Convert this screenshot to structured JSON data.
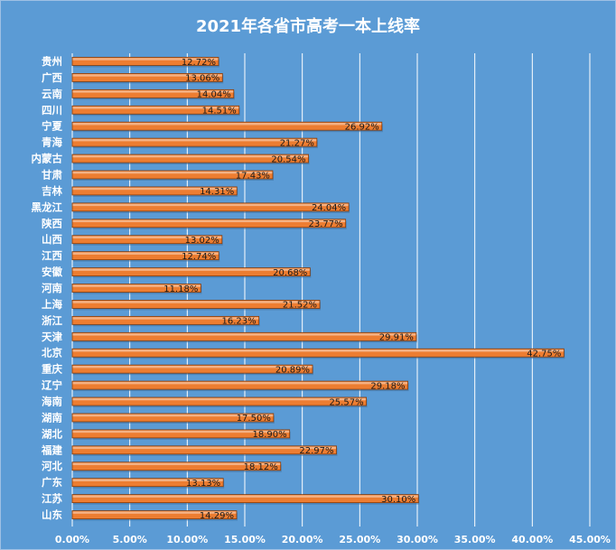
{
  "chart_data": {
    "type": "bar",
    "orientation": "horizontal",
    "title": "2021年各省市高考一本上线率",
    "categories": [
      "贵州",
      "广西",
      "云南",
      "四川",
      "宁夏",
      "青海",
      "内蒙古",
      "甘肃",
      "吉林",
      "黑龙江",
      "陕西",
      "山西",
      "江西",
      "安徽",
      "河南",
      "上海",
      "浙江",
      "天津",
      "北京",
      "重庆",
      "辽宁",
      "海南",
      "湖南",
      "湖北",
      "福建",
      "河北",
      "广东",
      "江苏",
      "山东"
    ],
    "values": [
      12.72,
      13.06,
      14.04,
      14.51,
      26.92,
      21.27,
      20.54,
      17.43,
      14.31,
      24.04,
      23.77,
      13.02,
      12.74,
      20.68,
      11.18,
      21.52,
      16.23,
      29.91,
      42.75,
      20.89,
      29.18,
      25.57,
      17.5,
      18.9,
      22.97,
      18.12,
      13.13,
      30.1,
      14.29
    ],
    "value_labels": [
      "12.72%",
      "13.06%",
      "14.04%",
      "14.51%",
      "26.92%",
      "21.27%",
      "20.54%",
      "17.43%",
      "14.31%",
      "24.04%",
      "23.77%",
      "13.02%",
      "12.74%",
      "20.68%",
      "11.18%",
      "21.52%",
      "16.23%",
      "29.91%",
      "42.75%",
      "20.89%",
      "29.18%",
      "25.57%",
      "17.50%",
      "18.90%",
      "22.97%",
      "18.12%",
      "13.13%",
      "30.10%",
      "14.29%"
    ],
    "x_ticks": [
      0,
      5,
      10,
      15,
      20,
      25,
      30,
      35,
      40,
      45
    ],
    "x_tick_labels": [
      "0.00%",
      "5.00%",
      "10.00%",
      "15.00%",
      "20.00%",
      "25.00%",
      "30.00%",
      "35.00%",
      "40.00%",
      "45.00%"
    ],
    "xlim": [
      0,
      45
    ],
    "xlabel": "",
    "ylabel": "",
    "grid": true,
    "legend": "none",
    "colors": {
      "background": "#5b9bd5",
      "bar": "#ed7d31",
      "bar_highlight": "#f4b183",
      "bar_edge": "#843c0c",
      "grid": "#ffffff",
      "text": "#ffffff",
      "value_text": "#1a1a1a"
    }
  }
}
